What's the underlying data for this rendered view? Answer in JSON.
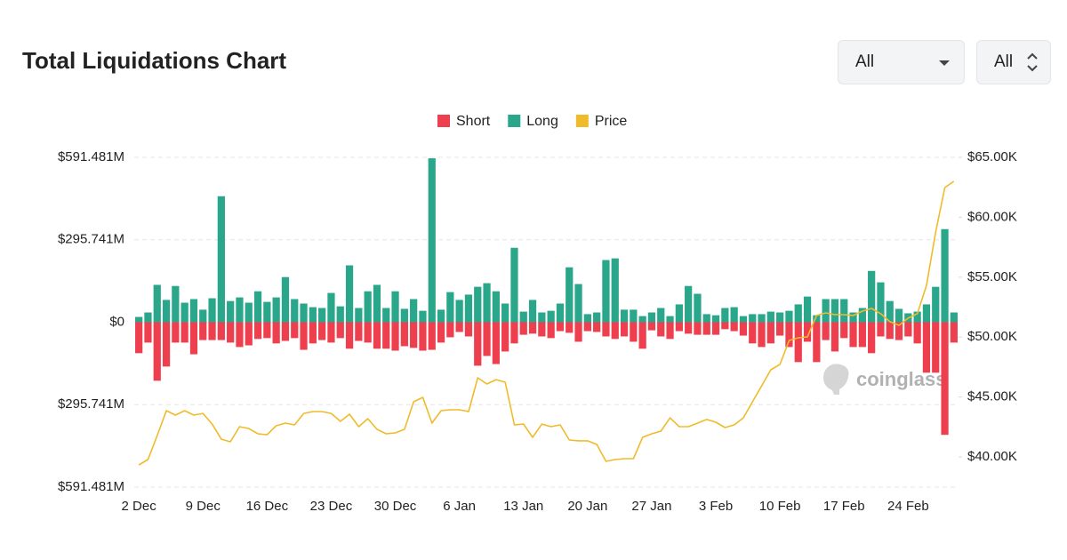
{
  "chart_data": {
    "type": "bar",
    "title": "Total Liquidations Chart",
    "controls": [
      "All",
      "All"
    ],
    "watermark": "coinglass",
    "categories": [
      "2 Dec",
      null,
      null,
      null,
      null,
      null,
      null,
      "9 Dec",
      null,
      null,
      null,
      null,
      null,
      null,
      "16 Dec",
      null,
      null,
      null,
      null,
      null,
      null,
      "23 Dec",
      null,
      null,
      null,
      null,
      null,
      null,
      "30 Dec",
      null,
      null,
      null,
      null,
      null,
      null,
      "6 Jan",
      null,
      null,
      null,
      null,
      null,
      null,
      "13 Jan",
      null,
      null,
      null,
      null,
      null,
      null,
      "20 Jan",
      null,
      null,
      null,
      null,
      null,
      null,
      "27 Jan",
      null,
      null,
      null,
      null,
      null,
      null,
      "3 Feb",
      null,
      null,
      null,
      null,
      null,
      null,
      "10 Feb",
      null,
      null,
      null,
      null,
      null,
      null,
      "17 Feb",
      null,
      null,
      null,
      null,
      null,
      null,
      "24 Feb",
      null,
      null,
      null,
      null,
      null
    ],
    "series": [
      {
        "name": "Short",
        "color": "#ee3f4f",
        "values": [
          -111,
          -73,
          -210,
          -159,
          -73,
          -73,
          -115,
          -64,
          -64,
          -64,
          -73,
          -89,
          -83,
          -60,
          -57,
          -76,
          -67,
          -57,
          -99,
          -76,
          -64,
          -73,
          -57,
          -95,
          -67,
          -73,
          -95,
          -95,
          -102,
          -86,
          -92,
          -102,
          -99,
          -73,
          -54,
          -35,
          -51,
          -156,
          -121,
          -150,
          -105,
          -76,
          -45,
          -41,
          -51,
          -57,
          -32,
          -38,
          -70,
          -32,
          -35,
          -51,
          -60,
          -51,
          -70,
          -95,
          -29,
          -51,
          -60,
          -32,
          -41,
          -45,
          -45,
          -45,
          -25,
          -32,
          -48,
          -76,
          -89,
          -76,
          -48,
          -89,
          -143,
          -70,
          -143,
          -64,
          -105,
          -57,
          -89,
          -89,
          -111,
          -51,
          -60,
          -64,
          -51,
          -76,
          -181,
          -181,
          -404,
          -73
        ]
      },
      {
        "name": "Long",
        "color": "#2aa78b",
        "values": [
          19,
          35,
          134,
          80,
          130,
          70,
          83,
          45,
          86,
          452,
          76,
          89,
          70,
          111,
          73,
          89,
          162,
          83,
          67,
          54,
          51,
          105,
          57,
          204,
          51,
          111,
          134,
          51,
          111,
          48,
          83,
          41,
          588,
          45,
          108,
          80,
          99,
          127,
          140,
          111,
          67,
          267,
          38,
          80,
          35,
          41,
          67,
          197,
          137,
          29,
          35,
          223,
          229,
          45,
          45,
          22,
          35,
          51,
          22,
          64,
          130,
          102,
          29,
          25,
          51,
          54,
          22,
          29,
          29,
          38,
          35,
          41,
          64,
          92,
          25,
          83,
          83,
          83,
          35,
          51,
          184,
          143,
          76,
          48,
          32,
          38,
          64,
          127,
          334,
          35
        ]
      },
      {
        "name": "Price",
        "color": "#f0bb2a",
        "type": "line",
        "axis": "y2",
        "values": [
          39330,
          39780,
          41780,
          43860,
          43490,
          43860,
          43490,
          43630,
          42740,
          41480,
          41260,
          42520,
          42370,
          41930,
          41850,
          42600,
          42820,
          42670,
          43630,
          43780,
          43780,
          43630,
          42970,
          43560,
          42520,
          43190,
          42300,
          41930,
          42000,
          42300,
          44600,
          44970,
          42820,
          43860,
          43930,
          43930,
          43780,
          46600,
          46080,
          46450,
          46230,
          42670,
          42740,
          41630,
          42740,
          42520,
          42670,
          41410,
          41340,
          41340,
          41040,
          39630,
          39780,
          39850,
          39850,
          41630,
          41930,
          42150,
          43260,
          42520,
          42520,
          42820,
          43120,
          42890,
          42450,
          42670,
          43260,
          44600,
          45930,
          47270,
          47720,
          49720,
          49940,
          50020,
          51800,
          52020,
          51870,
          51870,
          51800,
          52170,
          52390,
          51950,
          51280,
          50980,
          51580,
          51950,
          54320,
          58770,
          62480,
          63000
        ]
      }
    ],
    "ylim": [
      -591.481,
      591.481
    ],
    "yticks": [
      {
        "value": 591.481,
        "label": "$591.481M"
      },
      {
        "value": 295.741,
        "label": "$295.741M"
      },
      {
        "value": 0,
        "label": "$0"
      },
      {
        "value": -295.741,
        "label": "$295.741M"
      },
      {
        "value": -591.481,
        "label": "$591.481M"
      }
    ],
    "y2lim": [
      37478,
      65000
    ],
    "y2ticks": [
      {
        "value": 65000,
        "label": "$65.00K"
      },
      {
        "value": 60000,
        "label": "$60.00K"
      },
      {
        "value": 55000,
        "label": "$55.00K"
      },
      {
        "value": 50000,
        "label": "$50.00K"
      },
      {
        "value": 45000,
        "label": "$45.00K"
      },
      {
        "value": 40000,
        "label": "$40.00K"
      }
    ],
    "grid": true,
    "legend": "top"
  }
}
